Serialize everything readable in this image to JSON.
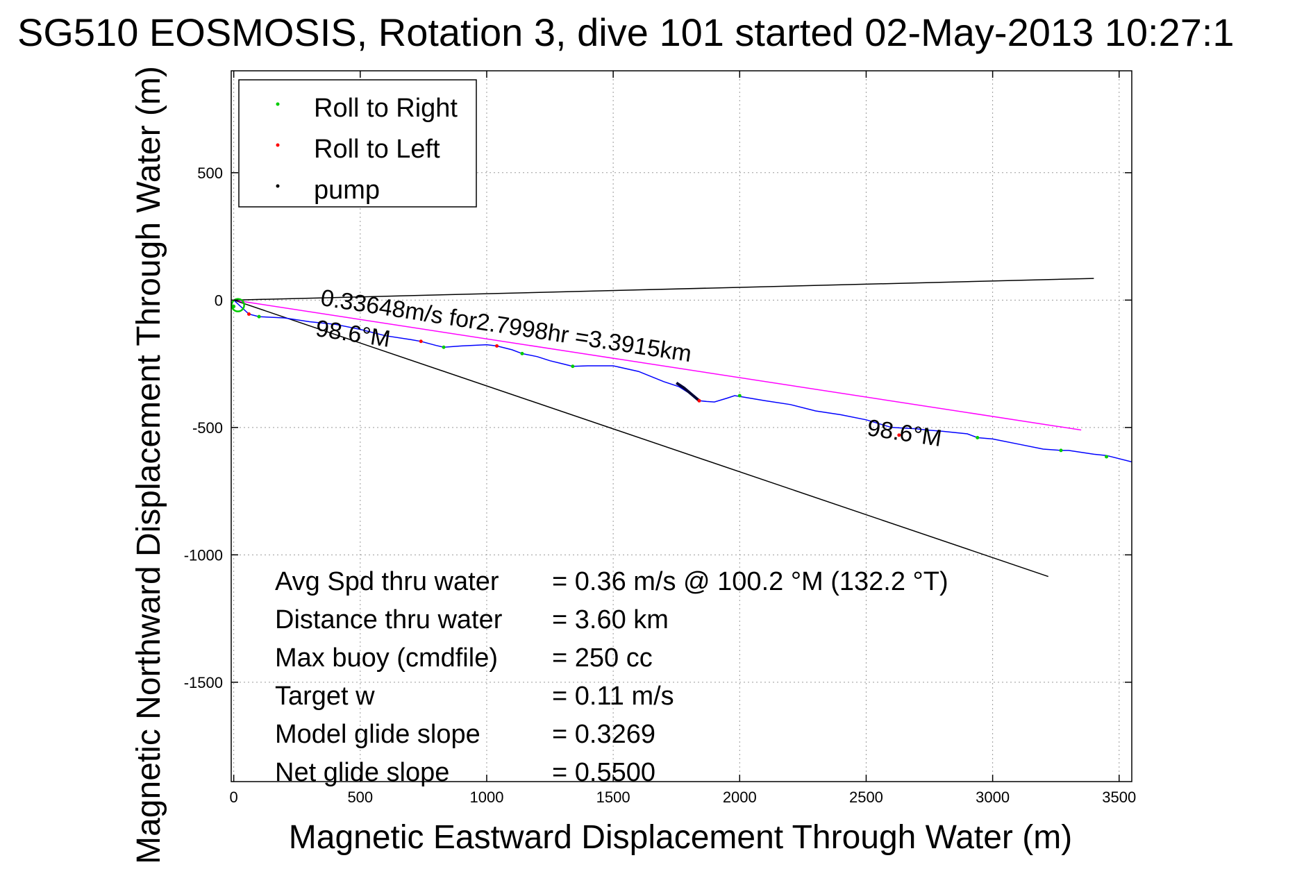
{
  "chart_data": {
    "type": "line",
    "title": "SG510 EOSMOSIS, Rotation 3, dive 101 started 02-May-2013 10:27:1",
    "xlabel": "Magnetic Eastward Displacement Through Water (m)",
    "ylabel": "Magnetic Northward Displacement Through Water (m)",
    "xlim": [
      -10,
      3550
    ],
    "ylim": [
      -1890,
      900
    ],
    "xticks": [
      0,
      500,
      1000,
      1500,
      2000,
      2500,
      3000,
      3500
    ],
    "yticks": [
      500,
      0,
      -500,
      -1000,
      -1500
    ],
    "grid": true,
    "legend_position": "top-left",
    "legend": [
      {
        "label": "Roll to Right",
        "color": "#00cc00"
      },
      {
        "label": "Roll to Left",
        "color": "#ff0000"
      },
      {
        "label": "pump",
        "color": "#000000"
      }
    ],
    "track": {
      "color": "#0000ff",
      "x": [
        0,
        60,
        100,
        200,
        300,
        400,
        500,
        600,
        700,
        740,
        800,
        830,
        900,
        1000,
        1040,
        1100,
        1140,
        1200,
        1250,
        1300,
        1340,
        1400,
        1500,
        1600,
        1700,
        1760,
        1800,
        1840,
        1870,
        1900,
        1950,
        1980,
        2000,
        2100,
        2200,
        2300,
        2400,
        2500,
        2600,
        2700,
        2740,
        2800,
        2900,
        2940,
        3000,
        3100,
        3200,
        3270,
        3300,
        3400,
        3450,
        3550
      ],
      "y": [
        0,
        -55,
        -65,
        -70,
        -85,
        -95,
        -115,
        -140,
        -155,
        -162,
        -178,
        -185,
        -180,
        -175,
        -180,
        -195,
        -210,
        -222,
        -238,
        -250,
        -260,
        -258,
        -258,
        -280,
        -320,
        -340,
        -365,
        -395,
        -398,
        -400,
        -385,
        -375,
        -378,
        -395,
        -410,
        -435,
        -450,
        -470,
        -500,
        -505,
        -510,
        -515,
        -525,
        -540,
        -545,
        -565,
        -585,
        -590,
        -590,
        -605,
        -610,
        -635
      ]
    },
    "start_marker": {
      "x": 0,
      "y": -20
    },
    "roll_right_points": {
      "x": [
        0,
        100,
        830,
        1140,
        1340,
        2000,
        2740,
        2940,
        3270,
        3450
      ],
      "y": [
        -25,
        -65,
        -185,
        -210,
        -260,
        -375,
        -510,
        -540,
        -590,
        -615
      ]
    },
    "roll_left_points": {
      "x": [
        60,
        740,
        1040,
        1840,
        2630
      ],
      "y": [
        -55,
        -162,
        -180,
        -395,
        -530
      ]
    },
    "pump_segment": {
      "x": [
        1750,
        1780,
        1810,
        1840
      ],
      "y": [
        -325,
        -345,
        -370,
        -395
      ]
    },
    "reference_lines": [
      {
        "name": "avg-speed-line",
        "color": "#ff00ff",
        "x": [
          0,
          3350
        ],
        "y": [
          0,
          -510
        ]
      },
      {
        "name": "heading-line-upper",
        "color": "#000000",
        "x": [
          0,
          3400
        ],
        "y": [
          0,
          85
        ]
      },
      {
        "name": "heading-line-lower",
        "color": "#000000",
        "x": [
          0,
          3220
        ],
        "y": [
          0,
          -1085
        ]
      }
    ],
    "annotations": {
      "speed_text": "0.33648m/s for2.7998hr =3.3915km",
      "heading_label_1": "98.6°M",
      "heading_label_2": "98.6°M"
    },
    "stats": [
      {
        "label": "Avg Spd thru water",
        "value": "=  0.36 m/s @ 100.2 °M (132.2 °T)"
      },
      {
        "label": "Distance thru water",
        "value": "=  3.60 km"
      },
      {
        "label": "Max buoy (cmdfile)",
        "value": "= 250 cc"
      },
      {
        "label": "Target w",
        "value": "= 0.11 m/s"
      },
      {
        "label": "Model glide slope",
        "value": "= 0.3269"
      },
      {
        "label": "Net glide slope",
        "value": "= 0.5500"
      }
    ]
  }
}
